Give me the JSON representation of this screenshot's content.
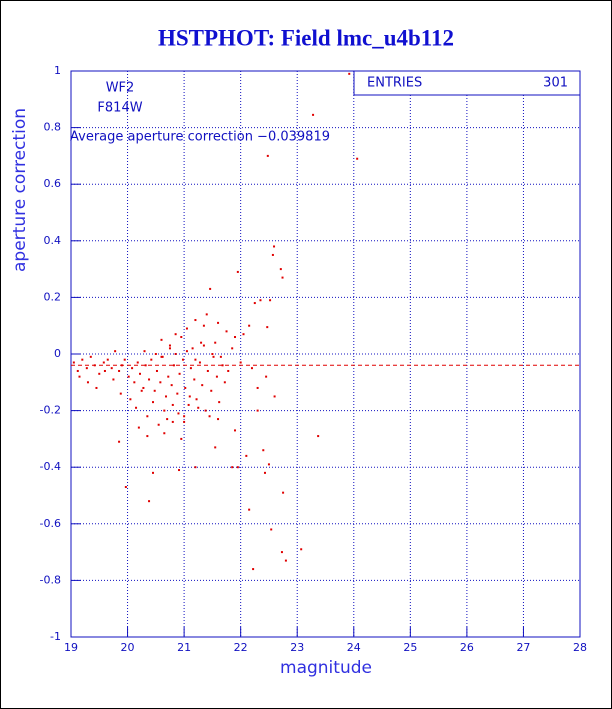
{
  "chart_data": {
    "type": "scatter",
    "title": "HSTPHOT: Field lmc_u4b112",
    "xlabel": "magnitude",
    "ylabel": "aperture correction",
    "annotations": [
      "WF2",
      "F814W",
      "Average aperture correction −0.039819"
    ],
    "stats": {
      "label": "ENTRIES",
      "value": 301
    },
    "average_line": -0.039819,
    "average_color": "#e00000",
    "color": "#e00000",
    "grid": true,
    "xlim": [
      19,
      28
    ],
    "ylim": [
      -1,
      1
    ],
    "xticks": [
      19,
      20,
      21,
      22,
      23,
      24,
      25,
      26,
      27,
      28
    ],
    "yticks": [
      -1,
      -0.8,
      -0.6,
      -0.4,
      -0.2,
      0,
      0.2,
      0.4,
      0.6,
      0.8,
      1
    ],
    "x": [
      23.92,
      23.28,
      22.48,
      24.06,
      22.59,
      22.57,
      22.71,
      22.74,
      21.95,
      22.52,
      22.25,
      22.35,
      21.46,
      22.47,
      22.05,
      21.2,
      21.35,
      21.6,
      21.75,
      21.05,
      20.95,
      21.4,
      21.3,
      20.6,
      20.75,
      20.85,
      21.15,
      21.55,
      21.9,
      22.15,
      19.05,
      19.12,
      19.2,
      19.28,
      19.35,
      19.42,
      19.5,
      19.58,
      19.65,
      19.72,
      19.78,
      19.85,
      19.9,
      19.95,
      20.02,
      20.08,
      20.12,
      20.18,
      20.22,
      20.28,
      20.32,
      20.38,
      20.42,
      20.48,
      20.52,
      20.58,
      20.62,
      20.68,
      20.72,
      20.78,
      20.82,
      20.88,
      20.92,
      20.98,
      21.02,
      21.08,
      21.12,
      21.18,
      21.22,
      21.28,
      21.32,
      21.38,
      21.42,
      21.48,
      21.52,
      21.58,
      21.62,
      21.68,
      21.72,
      21.78,
      19.15,
      19.3,
      19.45,
      19.6,
      19.75,
      19.88,
      20.05,
      20.15,
      20.25,
      20.35,
      20.45,
      20.55,
      20.65,
      20.7,
      20.8,
      20.9,
      21.0,
      21.1,
      21.25,
      21.45,
      20.3,
      20.5,
      20.6,
      20.75,
      20.85,
      21.05,
      21.2,
      21.35,
      21.5,
      21.65,
      21.85,
      22.0,
      22.2,
      22.3,
      22.45,
      22.6,
      23.37,
      22.75,
      22.73,
      22.8,
      23.07,
      22.22,
      22.54,
      22.15,
      20.38,
      19.97,
      20.45,
      20.91,
      21.2,
      21.85,
      21.95,
      22.43,
      22.5,
      19.85,
      20.35,
      20.95,
      21.55,
      22.4,
      22.1,
      22.3,
      21.9,
      20.65,
      20.2,
      21.0,
      20.8,
      21.6
    ],
    "y": [
      0.99,
      0.845,
      0.7,
      0.69,
      0.38,
      0.35,
      0.3,
      0.27,
      0.29,
      0.19,
      0.18,
      0.19,
      0.23,
      0.095,
      0.07,
      0.12,
      0.1,
      0.11,
      0.08,
      0.09,
      0.06,
      0.14,
      0.04,
      0.05,
      0.03,
      0.07,
      0.02,
      0.04,
      0.06,
      0.1,
      -0.03,
      -0.06,
      -0.02,
      -0.05,
      -0.01,
      -0.04,
      -0.07,
      -0.03,
      -0.02,
      -0.05,
      0.01,
      -0.06,
      -0.04,
      -0.02,
      -0.08,
      -0.05,
      -0.1,
      -0.03,
      -0.07,
      -0.12,
      -0.04,
      -0.09,
      -0.02,
      -0.13,
      -0.06,
      -0.1,
      -0.01,
      -0.15,
      -0.08,
      -0.11,
      -0.04,
      -0.14,
      -0.07,
      -0.02,
      -0.12,
      -0.18,
      -0.05,
      -0.09,
      -0.16,
      -0.03,
      -0.11,
      -0.2,
      -0.06,
      -0.13,
      -0.01,
      -0.08,
      -0.17,
      -0.04,
      -0.1,
      -0.06,
      -0.08,
      -0.1,
      -0.12,
      -0.06,
      -0.09,
      -0.14,
      -0.16,
      -0.19,
      -0.13,
      -0.22,
      -0.17,
      -0.25,
      -0.2,
      -0.23,
      -0.18,
      -0.21,
      -0.24,
      -0.15,
      -0.19,
      -0.22,
      0.01,
      0.0,
      -0.01,
      0.02,
      0.0,
      0.01,
      -0.02,
      0.03,
      0.0,
      -0.01,
      0.02,
      -0.03,
      -0.05,
      -0.12,
      -0.08,
      -0.15,
      -0.29,
      -0.49,
      -0.7,
      -0.73,
      -0.69,
      -0.76,
      -0.62,
      -0.55,
      -0.52,
      -0.47,
      -0.42,
      -0.41,
      -0.4,
      -0.4,
      -0.4,
      -0.42,
      -0.39,
      -0.31,
      -0.29,
      -0.3,
      -0.33,
      -0.34,
      -0.36,
      -0.2,
      -0.27,
      -0.28,
      -0.26,
      -0.22,
      -0.24,
      -0.23
    ]
  }
}
